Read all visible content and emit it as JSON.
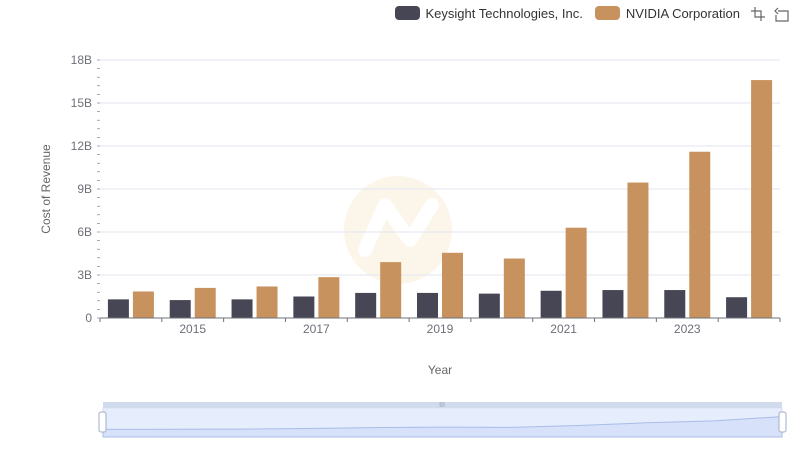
{
  "chart_data": {
    "type": "bar",
    "title": "",
    "xlabel": "Year",
    "ylabel": "Cost of Revenue",
    "categories": [
      "2014",
      "2015",
      "2016",
      "2017",
      "2018",
      "2019",
      "2020",
      "2021",
      "2022",
      "2023",
      "2024"
    ],
    "x_tick_labels": [
      "2015",
      "2017",
      "2019",
      "2021",
      "2023"
    ],
    "ylim": [
      0,
      18
    ],
    "y_unit": "B",
    "y_ticks": [
      {
        "value": 0,
        "label": "0"
      },
      {
        "value": 3,
        "label": "3B"
      },
      {
        "value": 6,
        "label": "6B"
      },
      {
        "value": 9,
        "label": "9B"
      },
      {
        "value": 12,
        "label": "12B"
      },
      {
        "value": 15,
        "label": "15B"
      },
      {
        "value": 18,
        "label": "18B"
      }
    ],
    "series": [
      {
        "name": "Keysight Technologies, Inc.",
        "color": "#464655",
        "values": [
          1.3,
          1.25,
          1.3,
          1.5,
          1.75,
          1.75,
          1.7,
          1.9,
          1.95,
          1.95,
          1.45
        ]
      },
      {
        "name": "NVIDIA Corporation",
        "color": "#c8925f",
        "values": [
          1.85,
          2.1,
          2.2,
          2.85,
          3.9,
          4.55,
          4.15,
          6.3,
          9.45,
          11.6,
          16.6
        ]
      }
    ],
    "grid": true,
    "legend_position": "top-right"
  },
  "toolbox": {
    "zoom_icon": "zoom-icon",
    "reset_icon": "restore-icon"
  }
}
